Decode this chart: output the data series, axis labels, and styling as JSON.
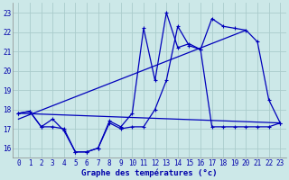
{
  "title": "Graphe des températures (°c)",
  "background_color": "#cce8e8",
  "grid_color": "#aacccc",
  "line_color": "#0000bb",
  "xlim": [
    -0.5,
    23.5
  ],
  "ylim": [
    15.5,
    23.5
  ],
  "yticks": [
    16,
    17,
    18,
    19,
    20,
    21,
    22,
    23
  ],
  "xticks": [
    0,
    1,
    2,
    3,
    4,
    5,
    6,
    7,
    8,
    9,
    10,
    11,
    12,
    13,
    14,
    15,
    16,
    17,
    18,
    19,
    20,
    21,
    22,
    23
  ],
  "curve1_x": [
    0,
    1,
    2,
    3,
    4,
    5,
    6,
    7,
    8,
    9,
    10,
    11,
    12,
    13,
    14,
    15,
    16,
    17,
    18,
    19,
    20,
    21,
    22,
    23
  ],
  "curve1_y": [
    17.8,
    17.9,
    17.1,
    17.5,
    16.9,
    15.8,
    15.8,
    16.0,
    17.4,
    17.1,
    17.8,
    22.2,
    19.5,
    23.0,
    21.2,
    21.4,
    21.1,
    22.7,
    22.3,
    22.2,
    22.1,
    21.5,
    18.5,
    17.3
  ],
  "curve2_x": [
    0,
    1,
    2,
    3,
    4,
    5,
    6,
    7,
    8,
    9,
    10,
    11,
    12,
    13,
    14,
    15,
    16,
    17,
    18,
    19,
    20,
    21,
    22,
    23
  ],
  "curve2_y": [
    17.8,
    17.9,
    17.1,
    17.1,
    17.0,
    15.8,
    15.8,
    16.0,
    17.3,
    17.0,
    17.1,
    17.1,
    18.0,
    19.5,
    22.3,
    21.3,
    21.1,
    17.1,
    17.1,
    17.1,
    17.1,
    17.1,
    17.1,
    17.3
  ],
  "line3_x": [
    0,
    23
  ],
  "line3_y": [
    17.8,
    17.3
  ],
  "line4_x": [
    0,
    20
  ],
  "line4_y": [
    17.5,
    22.1
  ]
}
